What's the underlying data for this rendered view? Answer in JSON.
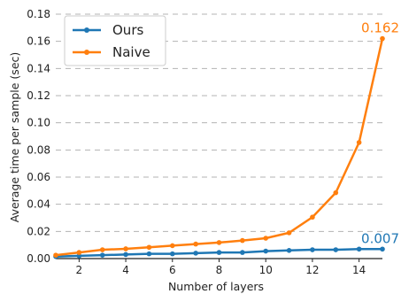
{
  "chart_data": {
    "type": "line",
    "title": "",
    "xlabel": "Number of layers",
    "ylabel": "Average time per sample (sec)",
    "x": [
      1,
      2,
      3,
      4,
      5,
      6,
      7,
      8,
      9,
      10,
      11,
      12,
      13,
      14,
      15
    ],
    "xlim": [
      1,
      15
    ],
    "ylim": [
      0,
      0.18
    ],
    "xticks": [
      2,
      4,
      6,
      8,
      10,
      12,
      14
    ],
    "yticks": [
      0.0,
      0.02,
      0.04,
      0.06,
      0.08,
      0.1,
      0.12,
      0.14,
      0.16,
      0.18
    ],
    "xtick_labels": [
      "2",
      "4",
      "6",
      "8",
      "10",
      "12",
      "14"
    ],
    "ytick_labels": [
      "0.00",
      "0.02",
      "0.04",
      "0.06",
      "0.08",
      "0.10",
      "0.12",
      "0.14",
      "0.16",
      "0.18"
    ],
    "grid": "horizontal dashed",
    "legend_position": "top-left",
    "series": [
      {
        "name": "Ours",
        "color": "#1f77b4",
        "values": [
          0.0015,
          0.002,
          0.0025,
          0.003,
          0.0035,
          0.0035,
          0.004,
          0.0045,
          0.0045,
          0.0055,
          0.006,
          0.0065,
          0.0065,
          0.007,
          0.007
        ],
        "end_label": "0.007"
      },
      {
        "name": "Naive",
        "color": "#ff7f0e",
        "values": [
          0.0025,
          0.0045,
          0.0065,
          0.0072,
          0.0083,
          0.0095,
          0.0107,
          0.0118,
          0.0133,
          0.015,
          0.019,
          0.0305,
          0.0485,
          0.0855,
          0.162
        ],
        "end_label": "0.162"
      }
    ]
  }
}
